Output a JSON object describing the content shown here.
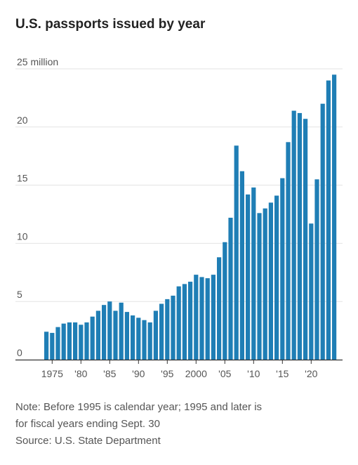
{
  "header": {
    "title": "U.S. passports issued by year"
  },
  "chart_data": {
    "type": "bar",
    "title": "U.S. passports issued by year",
    "color": "#1f7eb5",
    "ylim": [
      0,
      25
    ],
    "grid": true,
    "y_ticks": [
      {
        "value": 25,
        "label": "25 million"
      },
      {
        "value": 20,
        "label": "20"
      },
      {
        "value": 15,
        "label": "15"
      },
      {
        "value": 10,
        "label": "10"
      },
      {
        "value": 5,
        "label": "5"
      },
      {
        "value": 0,
        "label": "0"
      }
    ],
    "x_ticks": [
      {
        "year": 1975,
        "label": "1975"
      },
      {
        "year": 1980,
        "label": "'80"
      },
      {
        "year": 1985,
        "label": "'85"
      },
      {
        "year": 1990,
        "label": "'90"
      },
      {
        "year": 1995,
        "label": "'95"
      },
      {
        "year": 2000,
        "label": "2000"
      },
      {
        "year": 2005,
        "label": "'05"
      },
      {
        "year": 2010,
        "label": "'10"
      },
      {
        "year": 2015,
        "label": "'15"
      },
      {
        "year": 2020,
        "label": "'20"
      }
    ],
    "series": [
      {
        "years": [
          1974,
          1975,
          1976,
          1977,
          1978,
          1979,
          1980,
          1981,
          1982,
          1983,
          1984,
          1985,
          1986,
          1987,
          1988,
          1989,
          1990,
          1991,
          1992,
          1993,
          1994,
          1995,
          1996,
          1997,
          1998,
          1999,
          2000,
          2001,
          2002,
          2003,
          2004,
          2005,
          2006,
          2007,
          2008,
          2009,
          2010,
          2011,
          2012,
          2013,
          2014,
          2015,
          2016,
          2017,
          2018,
          2019,
          2020,
          2021,
          2022,
          2023,
          2024
        ],
        "values": [
          2.4,
          2.3,
          2.8,
          3.1,
          3.2,
          3.2,
          3.0,
          3.2,
          3.7,
          4.2,
          4.7,
          5.0,
          4.2,
          4.9,
          4.1,
          3.8,
          3.6,
          3.4,
          3.2,
          4.2,
          4.8,
          5.2,
          5.5,
          6.3,
          6.5,
          6.7,
          7.3,
          7.1,
          7.0,
          7.3,
          8.8,
          10.1,
          12.2,
          18.4,
          16.2,
          14.2,
          14.8,
          12.6,
          13.0,
          13.5,
          14.1,
          15.6,
          18.7,
          21.4,
          21.2,
          20.7,
          11.7,
          15.5,
          22.0,
          24.0,
          24.5
        ]
      }
    ]
  },
  "notes": {
    "line1": "Note: Before 1995 is calendar year; 1995 and later is",
    "line2": "for fiscal years ending Sept. 30",
    "source": "Source: U.S. State Department"
  }
}
